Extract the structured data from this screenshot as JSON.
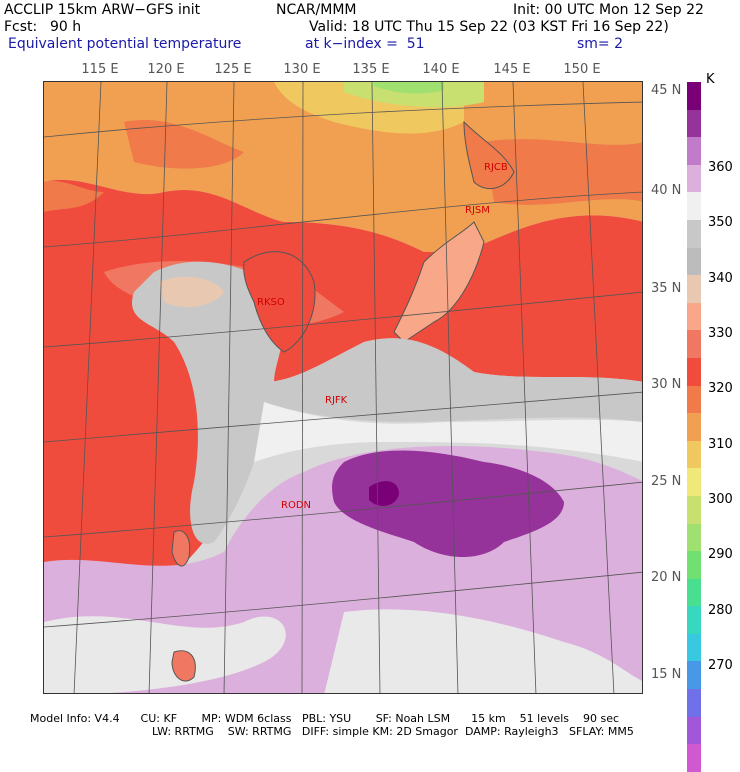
{
  "header": {
    "model_title": "ACCLIP 15km ARW−GFS init",
    "org": "NCAR/MMM",
    "init": "Init: 00 UTC Mon 12 Sep 22",
    "fcst_label": "Fcst:",
    "fcst_value": "90 h",
    "valid": "Valid: 18 UTC Thu 15 Sep 22 (03 KST Fri 16 Sep 22)",
    "field_name": "Equivalent potential temperature",
    "k_index": "at k−index =  51",
    "sm": "sm= 2"
  },
  "longitudes": [
    "115 E",
    "120 E",
    "125 E",
    "130 E",
    "135 E",
    "140 E",
    "145 E",
    "150 E"
  ],
  "latitudes": [
    "45 N",
    "40 N",
    "35 N",
    "30 N",
    "25 N",
    "20 N",
    "15 N"
  ],
  "stations": [
    "RJCB",
    "RJSM",
    "RKSO",
    "RJFK",
    "RODN"
  ],
  "colorbar": {
    "unit": "K",
    "ticks": [
      "270",
      "280",
      "290",
      "300",
      "310",
      "320",
      "330",
      "340",
      "350",
      "360"
    ],
    "colors": [
      "#7a0078",
      "#95339a",
      "#c07cc8",
      "#dcb0dc",
      "#f0f0f0",
      "#c8c8c8",
      "#bcbcbc",
      "#e8c8b0",
      "#f8a888",
      "#f07862",
      "#f04c3e",
      "#f07a4a",
      "#f0a050",
      "#f0c860",
      "#f0e878",
      "#c8e070",
      "#a0e070",
      "#70e070",
      "#48e090",
      "#38d8c0",
      "#38c8e0",
      "#4898e8",
      "#7070e8",
      "#a058d8",
      "#d058d0"
    ]
  },
  "footer": {
    "line1": "Model Info: V4.4      CU: KF       MP: WDM 6class   PBL: YSU       SF: Noah LSM      15 km    51 levels    90 sec",
    "line2": "LW: RRTMG    SW: RRTMG   DIFF: simple KM: 2D Smagor  DAMP: Rayleigh3   SFLAY: MM5"
  }
}
